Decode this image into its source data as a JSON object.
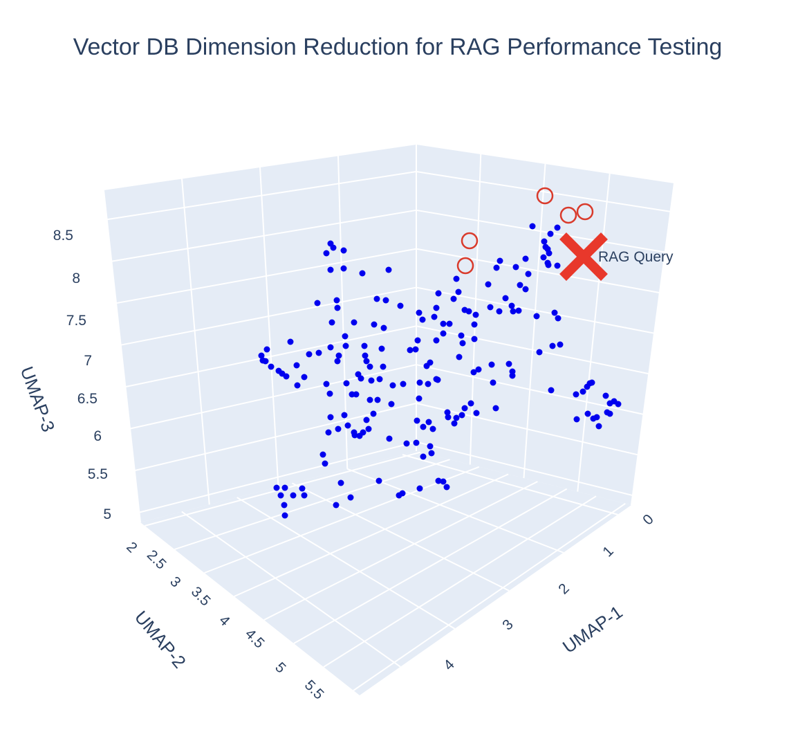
{
  "chart_data": {
    "type": "scatter3d",
    "title": "Vector DB Dimension Reduction for RAG Performance Testing",
    "axes": {
      "x": {
        "label": "UMAP-1",
        "ticks": [
          "0",
          "1",
          "2",
          "3",
          "4"
        ]
      },
      "y": {
        "label": "UMAP-2",
        "ticks": [
          "2",
          "2.5",
          "3",
          "3.5",
          "4",
          "4.5",
          "5",
          "5.5"
        ]
      },
      "z": {
        "label": "UMAP-3",
        "ticks": [
          "5",
          "5.5",
          "6",
          "6.5",
          "7",
          "7.5",
          "8",
          "8.5"
        ]
      }
    },
    "grid": true,
    "colors": {
      "points": "#0000ee",
      "query": "#e8382b",
      "neighbors": "#d93a2b",
      "pane": "#e5ecf6"
    },
    "series": [
      {
        "marker": "circle",
        "color": "#0000ee",
        "points_screen": [
          [
            478,
            352
          ],
          [
            482,
            358
          ],
          [
            472,
            366
          ],
          [
            497,
            362
          ],
          [
            478,
            390
          ],
          [
            497,
            388
          ],
          [
            524,
            395
          ],
          [
            562,
            390
          ],
          [
            459,
            438
          ],
          [
            487,
            434
          ],
          [
            488,
            445
          ],
          [
            545,
            432
          ],
          [
            558,
            434
          ],
          [
            579,
            442
          ],
          [
            480,
            466
          ],
          [
            512,
            466
          ],
          [
            541,
            469
          ],
          [
            555,
            474
          ],
          [
            499,
            486
          ],
          [
            420,
            494
          ],
          [
            478,
            502
          ],
          [
            500,
            500
          ],
          [
            461,
            510
          ],
          [
            447,
            512
          ],
          [
            490,
            514
          ],
          [
            488,
            522
          ],
          [
            527,
            500
          ],
          [
            528,
            514
          ],
          [
            530,
            522
          ],
          [
            552,
            504
          ],
          [
            535,
            530
          ],
          [
            554,
            530
          ],
          [
            386,
            505
          ],
          [
            378,
            514
          ],
          [
            384,
            522
          ],
          [
            380,
            521
          ],
          [
            392,
            530
          ],
          [
            403,
            536
          ],
          [
            408,
            540
          ],
          [
            414,
            544
          ],
          [
            429,
            528
          ],
          [
            430,
            557
          ],
          [
            440,
            545
          ],
          [
            472,
            555
          ],
          [
            477,
            569
          ],
          [
            501,
            554
          ],
          [
            509,
            570
          ],
          [
            515,
            570
          ],
          [
            518,
            541
          ],
          [
            522,
            547
          ],
          [
            537,
            550
          ],
          [
            549,
            548
          ],
          [
            568,
            557
          ],
          [
            583,
            555
          ],
          [
            607,
            553
          ],
          [
            606,
            576
          ],
          [
            619,
            555
          ],
          [
            631,
            548
          ],
          [
            535,
            578
          ],
          [
            546,
            578
          ],
          [
            566,
            584
          ],
          [
            478,
            603
          ],
          [
            498,
            600
          ],
          [
            530,
            607
          ],
          [
            540,
            598
          ],
          [
            533,
            620
          ],
          [
            512,
            625
          ],
          [
            513,
            629
          ],
          [
            520,
            630
          ],
          [
            525,
            625
          ],
          [
            489,
            620
          ],
          [
            475,
            625
          ],
          [
            503,
            615
          ],
          [
            563,
            634
          ],
          [
            588,
            641
          ],
          [
            602,
            640
          ],
          [
            603,
            608
          ],
          [
            612,
            617
          ],
          [
            620,
            610
          ],
          [
            626,
            620
          ],
          [
            622,
            645
          ],
          [
            624,
            655
          ],
          [
            612,
            660
          ],
          [
            467,
            657
          ],
          [
            470,
            670
          ],
          [
            493,
            698
          ],
          [
            548,
            695
          ],
          [
            577,
            716
          ],
          [
            582,
            713
          ],
          [
            607,
            706
          ],
          [
            634,
            695
          ],
          [
            641,
            696
          ],
          [
            646,
            704
          ],
          [
            400,
            705
          ],
          [
            406,
            716
          ],
          [
            412,
            705
          ],
          [
            424,
            716
          ],
          [
            437,
            706
          ],
          [
            440,
            716
          ],
          [
            411,
            730
          ],
          [
            412,
            745
          ],
          [
            486,
            730
          ],
          [
            507,
            719
          ],
          [
            606,
            452
          ],
          [
            611,
            462
          ],
          [
            628,
            458
          ],
          [
            634,
            424
          ],
          [
            631,
            445
          ],
          [
            641,
            468
          ],
          [
            650,
            468
          ],
          [
            656,
            432
          ],
          [
            663,
            422
          ],
          [
            672,
            448
          ],
          [
            641,
            482
          ],
          [
            631,
            492
          ],
          [
            667,
            485
          ],
          [
            669,
            496
          ],
          [
            686,
            469
          ],
          [
            686,
            490
          ],
          [
            688,
            455
          ],
          [
            709,
            444
          ],
          [
            706,
            411
          ],
          [
            718,
            387
          ],
          [
            723,
            377
          ],
          [
            746,
            386
          ],
          [
            740,
            442
          ],
          [
            742,
            450
          ],
          [
            750,
            449
          ],
          [
            752,
            412
          ],
          [
            760,
            418
          ],
          [
            764,
            396
          ],
          [
            760,
            374
          ],
          [
            731,
            431
          ],
          [
            722,
            450
          ],
          [
            660,
            403
          ],
          [
            664,
            516
          ],
          [
            685,
            538
          ],
          [
            692,
            534
          ],
          [
            711,
            527
          ],
          [
            717,
            590
          ],
          [
            713,
            553
          ],
          [
            736,
            526
          ],
          [
            741,
            537
          ],
          [
            741,
            543
          ],
          [
            593,
            506
          ],
          [
            601,
            505
          ],
          [
            622,
            524
          ],
          [
            617,
            529
          ],
          [
            633,
            549
          ],
          [
            672,
            590
          ],
          [
            681,
            583
          ],
          [
            689,
            597
          ],
          [
            668,
            600
          ],
          [
            660,
            604
          ],
          [
            648,
            603
          ],
          [
            647,
            596
          ],
          [
            657,
            612
          ],
          [
            678,
            450
          ],
          [
            604,
            492
          ],
          [
            776,
            457
          ],
          [
            789,
            357
          ],
          [
            786,
            372
          ],
          [
            792,
            380
          ],
          [
            794,
            366
          ],
          [
            792,
            360
          ],
          [
            787,
            349
          ],
          [
            796,
            338
          ],
          [
            806,
            329
          ],
          [
            770,
            327
          ],
          [
            793,
            383
          ],
          [
            806,
            384
          ],
          [
            802,
            452
          ],
          [
            807,
            460
          ],
          [
            810,
            498
          ],
          [
            799,
            500
          ],
          [
            780,
            509
          ],
          [
            797,
            564
          ],
          [
            833,
            570
          ],
          [
            843,
            566
          ],
          [
            849,
            559
          ],
          [
            853,
            554
          ],
          [
            856,
            553
          ],
          [
            876,
            572
          ],
          [
            888,
            580
          ],
          [
            882,
            583
          ],
          [
            894,
            584
          ],
          [
            850,
            598
          ],
          [
            858,
            605
          ],
          [
            863,
            603
          ],
          [
            866,
            616
          ],
          [
            878,
            596
          ],
          [
            882,
            598
          ],
          [
            834,
            606
          ]
        ]
      },
      {
        "marker": "circle-open",
        "color": "#d93a2b",
        "points_screen": [
          [
            788,
            283
          ],
          [
            822,
            311
          ],
          [
            846,
            306
          ],
          [
            679,
            348
          ],
          [
            673,
            384
          ]
        ]
      },
      {
        "marker": "x",
        "color": "#e8382b",
        "name": "RAG Query",
        "points_screen": [
          [
            844,
            371
          ]
        ]
      }
    ],
    "annotations": [
      {
        "text": "RAG Query"
      }
    ]
  }
}
